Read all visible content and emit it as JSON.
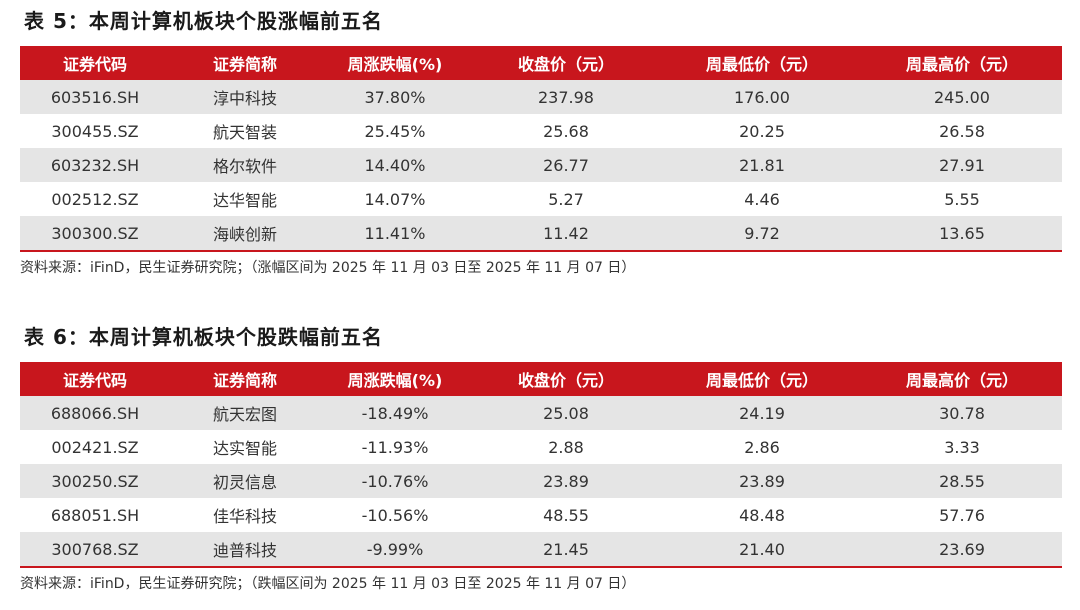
{
  "table1": {
    "title": "表 5：本周计算机板块个股涨幅前五名",
    "headers": [
      "证券代码",
      "证券简称",
      "周涨跌幅(%)",
      "收盘价（元）",
      "周最低价（元）",
      "周最高价（元）"
    ],
    "rows": [
      [
        "603516.SH",
        "淳中科技",
        "37.80%",
        "237.98",
        "176.00",
        "245.00"
      ],
      [
        "300455.SZ",
        "航天智装",
        "25.45%",
        "25.68",
        "20.25",
        "26.58"
      ],
      [
        "603232.SH",
        "格尔软件",
        "14.40%",
        "26.77",
        "21.81",
        "27.91"
      ],
      [
        "002512.SZ",
        "达华智能",
        "14.07%",
        "5.27",
        "4.46",
        "5.55"
      ],
      [
        "300300.SZ",
        "海峡创新",
        "11.41%",
        "11.42",
        "9.72",
        "13.65"
      ]
    ],
    "source": "资料来源：iFinD，民生证券研究院；（涨幅区间为 2025 年 11 月 03 日至 2025 年 11 月 07 日）"
  },
  "table2": {
    "title": "表 6：本周计算机板块个股跌幅前五名",
    "headers": [
      "证券代码",
      "证券简称",
      "周涨跌幅(%)",
      "收盘价（元）",
      "周最低价（元）",
      "周最高价（元）"
    ],
    "rows": [
      [
        "688066.SH",
        "航天宏图",
        "-18.49%",
        "25.08",
        "24.19",
        "30.78"
      ],
      [
        "002421.SZ",
        "达实智能",
        "-11.93%",
        "2.88",
        "2.86",
        "3.33"
      ],
      [
        "300250.SZ",
        "初灵信息",
        "-10.76%",
        "23.89",
        "23.89",
        "28.55"
      ],
      [
        "688051.SH",
        "佳华科技",
        "-10.56%",
        "48.55",
        "48.48",
        "57.76"
      ],
      [
        "300768.SZ",
        "迪普科技",
        "-9.99%",
        "21.45",
        "21.40",
        "23.69"
      ]
    ],
    "source": "资料来源：iFinD，民生证券研究院；（跌幅区间为 2025 年 11 月 03 日至 2025 年 11 月 07 日）"
  },
  "colors": {
    "header_bg": "#c8161d",
    "stripe_bg": "#e5e5e5"
  }
}
